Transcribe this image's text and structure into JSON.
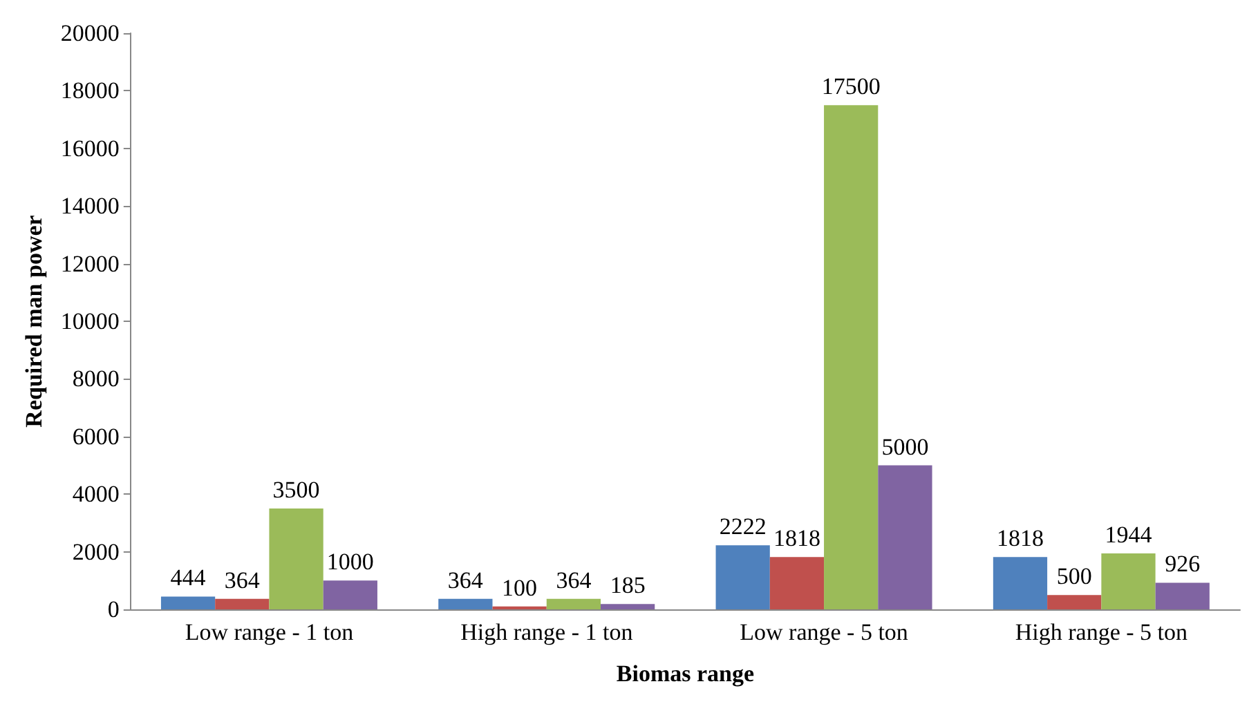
{
  "chart_data": {
    "type": "bar",
    "xlabel": "Biomas range",
    "ylabel": "Required man power",
    "categories": [
      "Low range - 1 ton",
      "High range - 1 ton",
      "Low range - 5 ton",
      "High range - 5 ton"
    ],
    "series": [
      {
        "color": "#4f81bd",
        "values": [
          444,
          364,
          2222,
          1818
        ]
      },
      {
        "color": "#c0504d",
        "values": [
          364,
          100,
          1818,
          500
        ]
      },
      {
        "color": "#9bbb59",
        "values": [
          3500,
          364,
          17500,
          1944
        ]
      },
      {
        "color": "#8064a2",
        "values": [
          1000,
          185,
          5000,
          926
        ]
      }
    ],
    "ylim": [
      0,
      20000
    ],
    "yticks": [
      0,
      2000,
      4000,
      6000,
      8000,
      10000,
      12000,
      14000,
      16000,
      18000,
      20000
    ],
    "grid": false,
    "data_labels": true
  }
}
